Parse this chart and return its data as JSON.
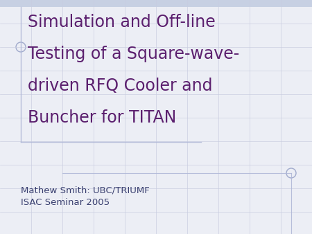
{
  "title_lines": [
    "Simulation and Off-line",
    "Testing of a Square-wave-",
    "driven RFQ Cooler and",
    "Buncher for TITAN"
  ],
  "subtitle_lines": [
    "Mathew Smith: UBC/TRIUMF",
    "ISAC Seminar 2005"
  ],
  "title_color": "#5B1F6E",
  "subtitle_color": "#3A4070",
  "background_color": "#ECEEF5",
  "grid_color": "#C8CCE0",
  "title_fontsize": 17,
  "subtitle_fontsize": 9.5,
  "top_bar_color": "#B8C4DC",
  "box_border_color": "#B0B8D8",
  "circle_color": "#A0AACC"
}
